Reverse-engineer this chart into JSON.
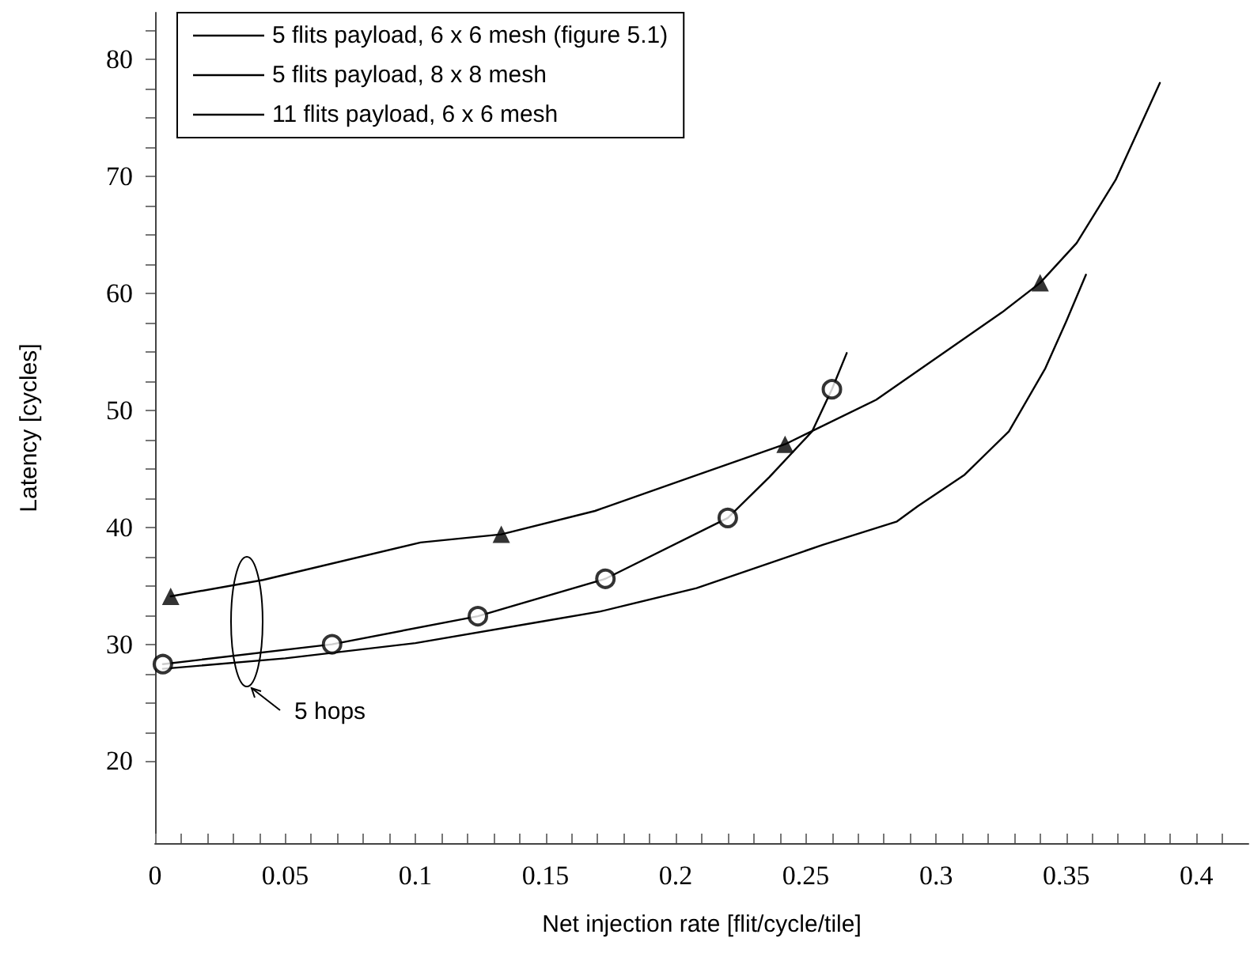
{
  "chart_data": {
    "type": "line",
    "xlabel": "Net injection rate [flit/cycle/tile]",
    "ylabel": "Latency [cycles]",
    "xlim": [
      0,
      0.42
    ],
    "ylim": [
      13,
      84
    ],
    "xticks": [
      0,
      {
        "value": 0.01,
        "label": null
      },
      {
        "value": 0.02,
        "label": null
      },
      {
        "value": 0.03,
        "label": null
      },
      {
        "value": 0.04,
        "label": null
      },
      0.05,
      {
        "value": 0.06,
        "label": null
      },
      {
        "value": 0.07,
        "label": null
      },
      {
        "value": 0.08,
        "label": null
      },
      {
        "value": 0.09,
        "label": null
      },
      0.1,
      {
        "value": 0.11,
        "label": null
      },
      {
        "value": 0.12,
        "label": null
      },
      {
        "value": 0.13,
        "label": null
      },
      {
        "value": 0.14,
        "label": null
      },
      0.15,
      {
        "value": 0.16,
        "label": null
      },
      {
        "value": 0.17,
        "label": null
      },
      {
        "value": 0.18,
        "label": null
      },
      {
        "value": 0.19,
        "label": null
      },
      0.2,
      {
        "value": 0.21,
        "label": null
      },
      {
        "value": 0.22,
        "label": null
      },
      {
        "value": 0.23,
        "label": null
      },
      {
        "value": 0.24,
        "label": null
      },
      0.25,
      {
        "value": 0.26,
        "label": null
      },
      {
        "value": 0.27,
        "label": null
      },
      {
        "value": 0.28,
        "label": null
      },
      {
        "value": 0.29,
        "label": null
      },
      0.3,
      {
        "value": 0.31,
        "label": null
      },
      {
        "value": 0.32,
        "label": null
      },
      {
        "value": 0.33,
        "label": null
      },
      {
        "value": 0.34,
        "label": null
      },
      0.35,
      {
        "value": 0.36,
        "label": null
      },
      {
        "value": 0.37,
        "label": null
      },
      {
        "value": 0.38,
        "label": null
      },
      {
        "value": 0.39,
        "label": null
      },
      0.4,
      {
        "value": 0.41,
        "label": null
      }
    ],
    "yticks": [
      20,
      {
        "value": 22.5,
        "label": null
      },
      {
        "value": 25,
        "label": null
      },
      {
        "value": 27.5,
        "label": null
      },
      30,
      {
        "value": 32.5,
        "label": null
      },
      {
        "value": 35,
        "label": null
      },
      {
        "value": 37.5,
        "label": null
      },
      40,
      {
        "value": 42.5,
        "label": null
      },
      {
        "value": 45,
        "label": null
      },
      {
        "value": 47.5,
        "label": null
      },
      50,
      {
        "value": 52.5,
        "label": null
      },
      {
        "value": 55,
        "label": null
      },
      {
        "value": 57.5,
        "label": null
      },
      60,
      {
        "value": 62.5,
        "label": null
      },
      {
        "value": 65,
        "label": null
      },
      {
        "value": 67.5,
        "label": null
      },
      70,
      {
        "value": 72.5,
        "label": null
      },
      {
        "value": 75,
        "label": null
      },
      {
        "value": 77.5,
        "label": null
      },
      80,
      {
        "value": 82.5,
        "label": null
      }
    ],
    "grid": false,
    "legend": "top left",
    "line_style": "solid",
    "series": [
      {
        "name": "5 flits payload, 6 x 6 mesh (figure 5.1)",
        "color": "#000000",
        "marker": "none",
        "x": [
          0.003,
          0.05,
          0.1,
          0.15,
          0.171,
          0.208,
          0.2565,
          0.285,
          0.293,
          0.311,
          0.328,
          0.342,
          0.35,
          0.3576
        ],
        "values": [
          27.9,
          28.8,
          30.1,
          32.0,
          32.8,
          34.8,
          38.5,
          40.5,
          41.8,
          44.5,
          48.2,
          53.6,
          57.6,
          61.6
        ]
      },
      {
        "name": "5 flits payload, 8 x 8 mesh",
        "color": "#000000",
        "marker": "none",
        "x": [
          0.003,
          0.068,
          0.124,
          0.173,
          0.22,
          0.236,
          0.2524,
          0.26,
          0.2657
        ],
        "values": [
          28.3,
          30.0,
          32.4,
          35.6,
          40.8,
          44.3,
          48.2,
          51.8,
          54.9
        ]
      },
      {
        "type": "scatter",
        "color": "#000000",
        "marker": "circle",
        "x": [
          0.003,
          0.068,
          0.124,
          0.173,
          0.22,
          0.26
        ],
        "values": [
          28.3,
          30.0,
          32.4,
          35.6,
          40.8,
          51.8
        ]
      },
      {
        "name": "11 flits payload, 6 x 6 mesh",
        "color": "#000000",
        "marker": "none",
        "x": [
          0.006,
          0.0415,
          0.102,
          0.133,
          0.169,
          0.206,
          0.242,
          0.277,
          0.3255,
          0.34,
          0.354,
          0.369,
          0.386
        ],
        "values": [
          34.1,
          35.5,
          38.7,
          39.4,
          41.4,
          44.3,
          47.1,
          50.9,
          58.4,
          60.9,
          64.3,
          69.7,
          78.0
        ]
      },
      {
        "type": "scatter",
        "color": "#000000",
        "marker": "triangle",
        "x": [
          0.006,
          0.133,
          0.242,
          0.34
        ],
        "values": [
          34.1,
          39.4,
          47.1,
          60.9
        ]
      }
    ],
    "annotations": [
      "5 hops"
    ]
  }
}
